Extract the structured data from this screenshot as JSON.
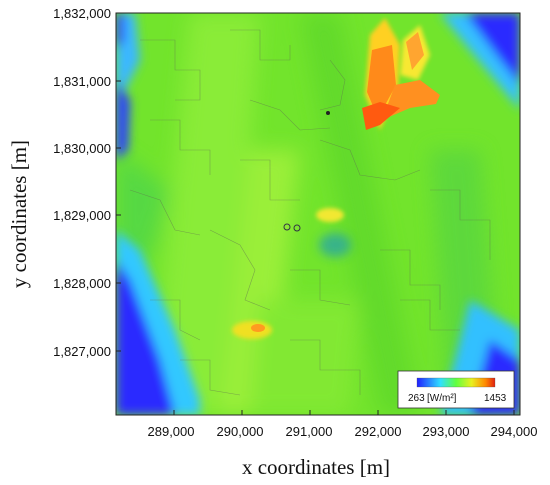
{
  "map": {
    "xlabel": "x coordinates [m]",
    "ylabel": "y coordinates [m]",
    "x_ticks": [
      "289,000",
      "290,000",
      "291,000",
      "292,000",
      "293,000",
      "294,000"
    ],
    "y_ticks": [
      "1,832,000",
      "1,831,000",
      "1,830,000",
      "1,829,000",
      "1,828,000",
      "1,827,000"
    ],
    "x_range": [
      288200,
      294100
    ],
    "y_range": [
      1826100,
      1832000
    ]
  },
  "colorbar": {
    "min_label": "263",
    "unit_label": "[W/m²]",
    "max_label": "1453",
    "colors": [
      "#2020ff",
      "#30e0ff",
      "#60ff40",
      "#e8f020",
      "#ff8800",
      "#e02010"
    ]
  },
  "colors": {
    "base_green": "#6fe62a",
    "low_blue": "#2a24ff",
    "high_red": "#ff5a1a",
    "high_yellow": "#f0e020"
  }
}
